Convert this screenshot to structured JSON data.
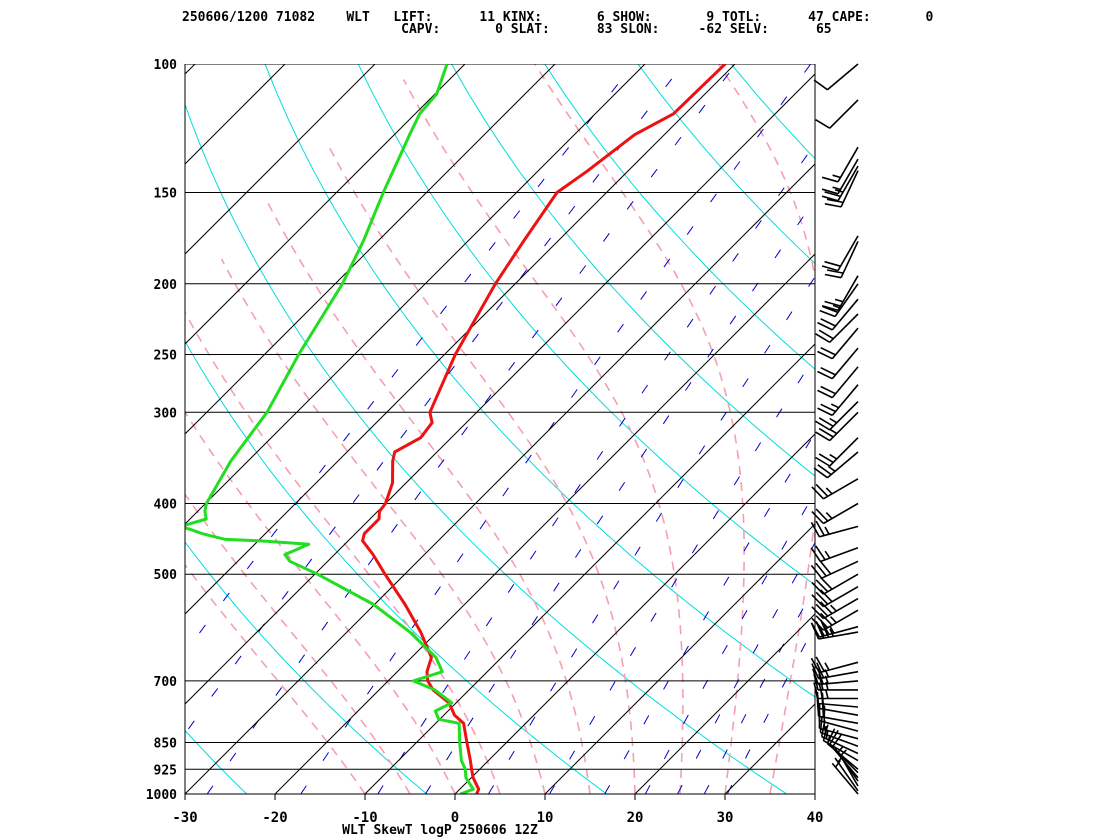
{
  "header": {
    "line1": "250606/1200 71082    WLT   LIFT:      11 KINX:       6 SHOW:       9 TOTL:      47 CAPE:       0",
    "line2": "                            CAPV:       0 SLAT:      83 SLON:     -62 SELV:      65"
  },
  "chart_data": {
    "type": "line",
    "title": "WLT SkewT logP 250606 12Z",
    "xlabel": "",
    "ylabel": "",
    "x_ticks": [
      -30,
      -20,
      -10,
      0,
      10,
      20,
      30,
      40
    ],
    "x_tick_labels": [
      "-30",
      "-20",
      "-10",
      "0",
      "10",
      "20",
      "30",
      "40"
    ],
    "xlim": [
      -30,
      40
    ],
    "ylim_pressure": [
      1000,
      100
    ],
    "y_scale": "log",
    "pressure_levels": [
      100,
      150,
      200,
      250,
      300,
      400,
      500,
      700,
      850,
      925,
      1000
    ],
    "pressure_labels": [
      "100",
      "150",
      "200",
      "250",
      "300",
      "400",
      "500",
      "700",
      "850",
      "925",
      "1000"
    ],
    "skew_degrees": 45,
    "isotherms": [
      -150,
      -140,
      -130,
      -120,
      -110,
      -100,
      -90,
      -80,
      -70,
      -60,
      -50,
      -40,
      -30,
      -20,
      -10,
      0,
      10,
      20,
      30,
      40
    ],
    "dry_adiabats_K": [
      230,
      250,
      270,
      290,
      310,
      330,
      350,
      370,
      390,
      410,
      430,
      450,
      470
    ],
    "moist_adiabats_C": [
      -10,
      -5,
      0,
      5,
      10,
      15,
      20,
      25,
      30,
      35
    ],
    "mixing_ratios_gkg": [
      0.1,
      0.2,
      0.4,
      1,
      2,
      3,
      5,
      8,
      12,
      16,
      20,
      24,
      28
    ],
    "series": [
      {
        "color": "#ee1111",
        "points": [
          [
            1000,
            2.4
          ],
          [
            985,
            2.1
          ],
          [
            950,
            0.2
          ],
          [
            925,
            -0.9
          ],
          [
            900,
            -2.0
          ],
          [
            850,
            -4.4
          ],
          [
            800,
            -6.9
          ],
          [
            780,
            -8.8
          ],
          [
            750,
            -10.8
          ],
          [
            720,
            -14.0
          ],
          [
            700,
            -15.6
          ],
          [
            680,
            -16.7
          ],
          [
            650,
            -17.8
          ],
          [
            600,
            -21.8
          ],
          [
            550,
            -26.6
          ],
          [
            500,
            -32.2
          ],
          [
            470,
            -35.7
          ],
          [
            450,
            -38.4
          ],
          [
            440,
            -39.0
          ],
          [
            430,
            -39.0
          ],
          [
            420,
            -39.0
          ],
          [
            410,
            -39.8
          ],
          [
            400,
            -40.0
          ],
          [
            375,
            -41.5
          ],
          [
            350,
            -43.9
          ],
          [
            340,
            -44.7
          ],
          [
            325,
            -43.4
          ],
          [
            310,
            -43.8
          ],
          [
            300,
            -45.2
          ],
          [
            250,
            -48.8
          ],
          [
            200,
            -52.2
          ],
          [
            175,
            -53.8
          ],
          [
            150,
            -55.5
          ],
          [
            140,
            -54.5
          ],
          [
            125,
            -53.3
          ],
          [
            117,
            -51.3
          ],
          [
            100,
            -51.1
          ]
        ]
      },
      {
        "color": "#22dd22",
        "points": [
          [
            1000,
            0.6
          ],
          [
            985,
            1.5
          ],
          [
            950,
            -0.6
          ],
          [
            925,
            -1.6
          ],
          [
            900,
            -3.0
          ],
          [
            850,
            -5.2
          ],
          [
            800,
            -7.4
          ],
          [
            790,
            -10.1
          ],
          [
            770,
            -11.4
          ],
          [
            750,
            -10.5
          ],
          [
            720,
            -13.8
          ],
          [
            700,
            -17.2
          ],
          [
            680,
            -15.0
          ],
          [
            650,
            -17.3
          ],
          [
            600,
            -23.0
          ],
          [
            550,
            -30.1
          ],
          [
            500,
            -39.7
          ],
          [
            480,
            -44.2
          ],
          [
            470,
            -45.5
          ],
          [
            455,
            -44.0
          ],
          [
            450,
            -49.9
          ],
          [
            448,
            -53.8
          ],
          [
            440,
            -57.0
          ],
          [
            435,
            -58.5
          ],
          [
            430,
            -60.2
          ],
          [
            420,
            -58.2
          ],
          [
            410,
            -59.2
          ],
          [
            400,
            -59.9
          ],
          [
            350,
            -61.9
          ],
          [
            300,
            -63.3
          ],
          [
            250,
            -66.2
          ],
          [
            200,
            -69.2
          ],
          [
            175,
            -71.6
          ],
          [
            150,
            -74.8
          ],
          [
            125,
            -78.3
          ],
          [
            117,
            -79.5
          ],
          [
            110,
            -79.8
          ],
          [
            100,
            -82.0
          ]
        ]
      }
    ],
    "wind_barbs": [
      {
        "p": 1000,
        "dir": 320,
        "spd": 5
      },
      {
        "p": 990,
        "dir": 325,
        "spd": 5
      },
      {
        "p": 975,
        "dir": 330,
        "spd": 5
      },
      {
        "p": 960,
        "dir": 325,
        "spd": 5
      },
      {
        "p": 950,
        "dir": 320,
        "spd": 10
      },
      {
        "p": 935,
        "dir": 315,
        "spd": 10
      },
      {
        "p": 925,
        "dir": 310,
        "spd": 10
      },
      {
        "p": 900,
        "dir": 300,
        "spd": 15
      },
      {
        "p": 880,
        "dir": 295,
        "spd": 15
      },
      {
        "p": 860,
        "dir": 290,
        "spd": 15
      },
      {
        "p": 840,
        "dir": 285,
        "spd": 15
      },
      {
        "p": 820,
        "dir": 285,
        "spd": 20
      },
      {
        "p": 800,
        "dir": 280,
        "spd": 20
      },
      {
        "p": 780,
        "dir": 280,
        "spd": 20
      },
      {
        "p": 760,
        "dir": 275,
        "spd": 20
      },
      {
        "p": 740,
        "dir": 270,
        "spd": 25
      },
      {
        "p": 720,
        "dir": 270,
        "spd": 25
      },
      {
        "p": 700,
        "dir": 265,
        "spd": 25
      },
      {
        "p": 680,
        "dir": 260,
        "spd": 25
      },
      {
        "p": 660,
        "dir": 255,
        "spd": 25
      },
      {
        "p": 600,
        "dir": 260,
        "spd": 35
      },
      {
        "p": 590,
        "dir": 255,
        "spd": 35
      },
      {
        "p": 560,
        "dir": 240,
        "spd": 35
      },
      {
        "p": 540,
        "dir": 240,
        "spd": 35
      },
      {
        "p": 520,
        "dir": 240,
        "spd": 30
      },
      {
        "p": 500,
        "dir": 240,
        "spd": 30
      },
      {
        "p": 480,
        "dir": 245,
        "spd": 30
      },
      {
        "p": 460,
        "dir": 250,
        "spd": 25
      },
      {
        "p": 430,
        "dir": 255,
        "spd": 25
      },
      {
        "p": 400,
        "dir": 240,
        "spd": 25
      },
      {
        "p": 370,
        "dir": 240,
        "spd": 25
      },
      {
        "p": 340,
        "dir": 230,
        "spd": 25
      },
      {
        "p": 325,
        "dir": 225,
        "spd": 25
      },
      {
        "p": 300,
        "dir": 225,
        "spd": 25
      },
      {
        "p": 290,
        "dir": 225,
        "spd": 25
      },
      {
        "p": 275,
        "dir": 220,
        "spd": 25
      },
      {
        "p": 260,
        "dir": 220,
        "spd": 20
      },
      {
        "p": 245,
        "dir": 220,
        "spd": 20
      },
      {
        "p": 230,
        "dir": 220,
        "spd": 20
      },
      {
        "p": 220,
        "dir": 225,
        "spd": 20
      },
      {
        "p": 210,
        "dir": 220,
        "spd": 20
      },
      {
        "p": 200,
        "dir": 215,
        "spd": 25
      },
      {
        "p": 195,
        "dir": 210,
        "spd": 25
      },
      {
        "p": 175,
        "dir": 205,
        "spd": 20
      },
      {
        "p": 172,
        "dir": 210,
        "spd": 20
      },
      {
        "p": 140,
        "dir": 205,
        "spd": 20
      },
      {
        "p": 138,
        "dir": 210,
        "spd": 25
      },
      {
        "p": 135,
        "dir": 210,
        "spd": 15
      },
      {
        "p": 130,
        "dir": 210,
        "spd": 15
      },
      {
        "p": 112,
        "dir": 225,
        "spd": 10
      },
      {
        "p": 100,
        "dir": 230,
        "spd": 10
      }
    ],
    "colors": {
      "frame": "#000000",
      "isotherm": "#000000",
      "pressure_line": "#000000",
      "dry_adiabat": "#00dddd",
      "moist_adiabat": "#f4a0b0",
      "mixing_ratio": "#0000cc",
      "temperature": "#ee1111",
      "dewpoint": "#22dd22"
    }
  }
}
